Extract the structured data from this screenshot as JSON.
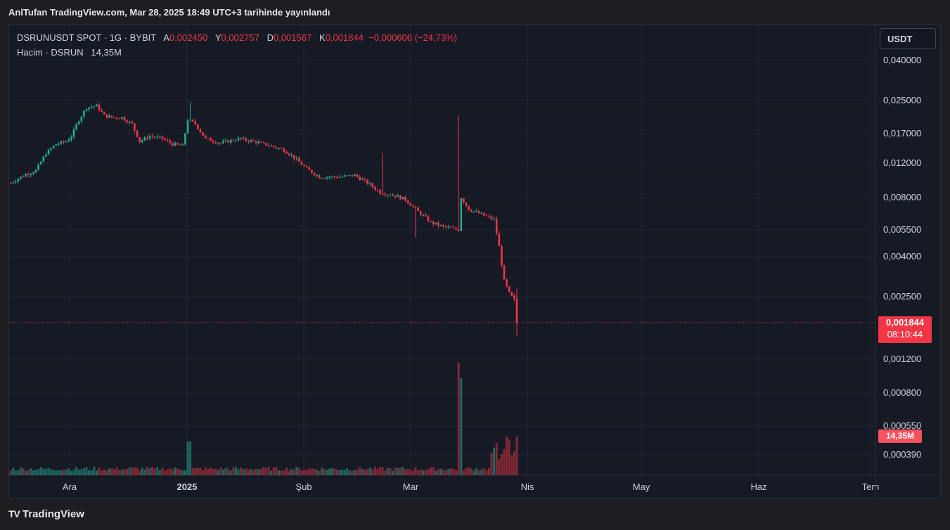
{
  "caption": "AnlTufan TradingView.com, Mar 28, 2025 18:49 UTC+3 tarihinde yayınlandı",
  "legend": {
    "symbol": "DSRUNUSDT SPOT · 1G · BYBIT",
    "open_label": "A",
    "open": "0,002450",
    "high_label": "Y",
    "high": "0,002757",
    "low_label": "D",
    "low": "0,001567",
    "close_label": "K",
    "close": "0,001844",
    "change": "−0,000606 (−24,73%)"
  },
  "volume_legend": {
    "label": "Hacim · DSRUN",
    "value": "14,35M"
  },
  "currency": "USDT",
  "last_price": {
    "value": "0,001844",
    "countdown": "08:10:44"
  },
  "volume_tag": "14,35M",
  "footer": {
    "brand": "TradingView",
    "logo_icon": "tradingview-logo-icon"
  },
  "colors": {
    "up": "#22ab94",
    "down": "#f23645",
    "background": "#161a25",
    "grid": "#232735"
  },
  "chart_data": {
    "type": "candlestick",
    "scale": "log",
    "x_tick_labels": [
      "Ara",
      "2025",
      "Şub",
      "Mar",
      "Nis",
      "May",
      "Haz",
      "Tem"
    ],
    "y_tick_labels": [
      "0,040000",
      "0,025000",
      "0,017000",
      "0,012000",
      "0,008000",
      "0,005500",
      "0,004000",
      "0,002500",
      "0,001200",
      "0,000800",
      "0,000550",
      "0,000390"
    ],
    "y_ticks": [
      0.04,
      0.025,
      0.017,
      0.012,
      0.008,
      0.0055,
      0.004,
      0.0025,
      0.0012,
      0.0008,
      0.00055,
      0.00039
    ],
    "last_price": 0.001844,
    "phases": [
      {
        "label": "late Nov – mid Dec 2024",
        "price_range": [
          0.0095,
          0.024
        ],
        "trend": "up"
      },
      {
        "label": "mid Dec – early Mar",
        "price_range": [
          0.0075,
          0.024
        ],
        "trend": "down"
      },
      {
        "label": "mid Mar spike",
        "high": 0.021
      },
      {
        "label": "late Mar crash",
        "price_range": [
          0.00157,
          0.006
        ],
        "trend": "down"
      }
    ],
    "volume": {
      "max_label": "14,35M",
      "spikes": [
        "2025-01-01",
        "2025-03-14",
        "2025-03-23 to 2025-03-28"
      ]
    }
  }
}
